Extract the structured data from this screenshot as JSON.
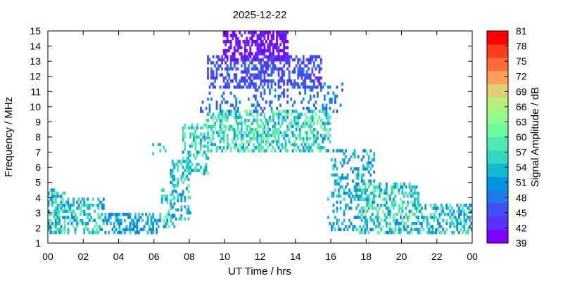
{
  "chart_data": {
    "type": "heatmap",
    "title": "2025-12-22",
    "xlabel": "UT Time / hrs",
    "ylabel": "Frequency / MHz",
    "colorbar_label": "Signal Amplitude / dB",
    "xlim": [
      0,
      24
    ],
    "ylim": [
      1,
      15
    ],
    "x_ticks": [
      "00",
      "02",
      "04",
      "06",
      "08",
      "10",
      "12",
      "14",
      "16",
      "18",
      "20",
      "22",
      "00"
    ],
    "y_ticks": [
      1,
      2,
      3,
      4,
      5,
      6,
      7,
      8,
      9,
      10,
      11,
      12,
      13,
      14,
      15
    ],
    "colorbar_range": [
      39,
      81
    ],
    "colorbar_ticks": [
      39,
      42,
      45,
      48,
      51,
      54,
      57,
      60,
      63,
      66,
      69,
      72,
      75,
      78,
      81
    ],
    "colormap": [
      "#7f00ff",
      "#5a30fb",
      "#3e50f6",
      "#1f78ec",
      "#0095e0",
      "#13b8d2",
      "#33d7c3",
      "#4ce9b3",
      "#6dfa9f",
      "#93fb8a",
      "#b6f07a",
      "#e0cf78",
      "#ff9e56",
      "#ff6a38",
      "#ff3b1d",
      "#ff0000"
    ],
    "grid": false,
    "bin_width_hours": 0.1,
    "bin_height_mhz": 0.2,
    "regions": [
      {
        "t": [
          0.0,
          0.9
        ],
        "f": [
          1.6,
          4.6
        ],
        "dB": [
          48,
          64
        ],
        "density": 0.6
      },
      {
        "t": [
          0.9,
          3.2
        ],
        "f": [
          1.6,
          4.0
        ],
        "dB": [
          48,
          62
        ],
        "density": 0.45
      },
      {
        "t": [
          3.2,
          6.3
        ],
        "f": [
          1.6,
          2.9
        ],
        "dB": [
          47,
          56
        ],
        "density": 0.55
      },
      {
        "t": [
          5.5,
          6.6
        ],
        "f": [
          6.8,
          7.6
        ],
        "dB": [
          50,
          58
        ],
        "density": 0.1
      },
      {
        "t": [
          6.4,
          7.1
        ],
        "f": [
          2.0,
          4.6
        ],
        "dB": [
          50,
          62
        ],
        "density": 0.35
      },
      {
        "t": [
          6.9,
          8.0
        ],
        "f": [
          2.5,
          6.5
        ],
        "dB": [
          48,
          60
        ],
        "density": 0.4
      },
      {
        "t": [
          7.6,
          9.0
        ],
        "f": [
          5.5,
          8.8
        ],
        "dB": [
          50,
          62
        ],
        "density": 0.35
      },
      {
        "t": [
          8.9,
          15.9
        ],
        "f": [
          7.0,
          9.6
        ],
        "dB": [
          50,
          64
        ],
        "density": 0.5
      },
      {
        "t": [
          8.6,
          16.6
        ],
        "f": [
          9.6,
          11.5
        ],
        "dB": [
          44,
          52
        ],
        "density": 0.2
      },
      {
        "t": [
          9.0,
          15.4
        ],
        "f": [
          11.2,
          13.2
        ],
        "dB": [
          42,
          48
        ],
        "density": 0.5
      },
      {
        "t": [
          9.9,
          13.5
        ],
        "f": [
          13.0,
          14.8
        ],
        "dB": [
          39,
          44
        ],
        "density": 0.6
      },
      {
        "t": [
          16.0,
          18.5
        ],
        "f": [
          4.0,
          7.2
        ],
        "dB": [
          48,
          58
        ],
        "density": 0.35
      },
      {
        "t": [
          15.8,
          17.8
        ],
        "f": [
          1.8,
          4.5
        ],
        "dB": [
          48,
          56
        ],
        "density": 0.25
      },
      {
        "t": [
          17.5,
          21.0
        ],
        "f": [
          1.6,
          5.0
        ],
        "dB": [
          48,
          64
        ],
        "density": 0.45
      },
      {
        "t": [
          21.0,
          24.0
        ],
        "f": [
          1.6,
          3.6
        ],
        "dB": [
          48,
          60
        ],
        "density": 0.45
      }
    ]
  }
}
